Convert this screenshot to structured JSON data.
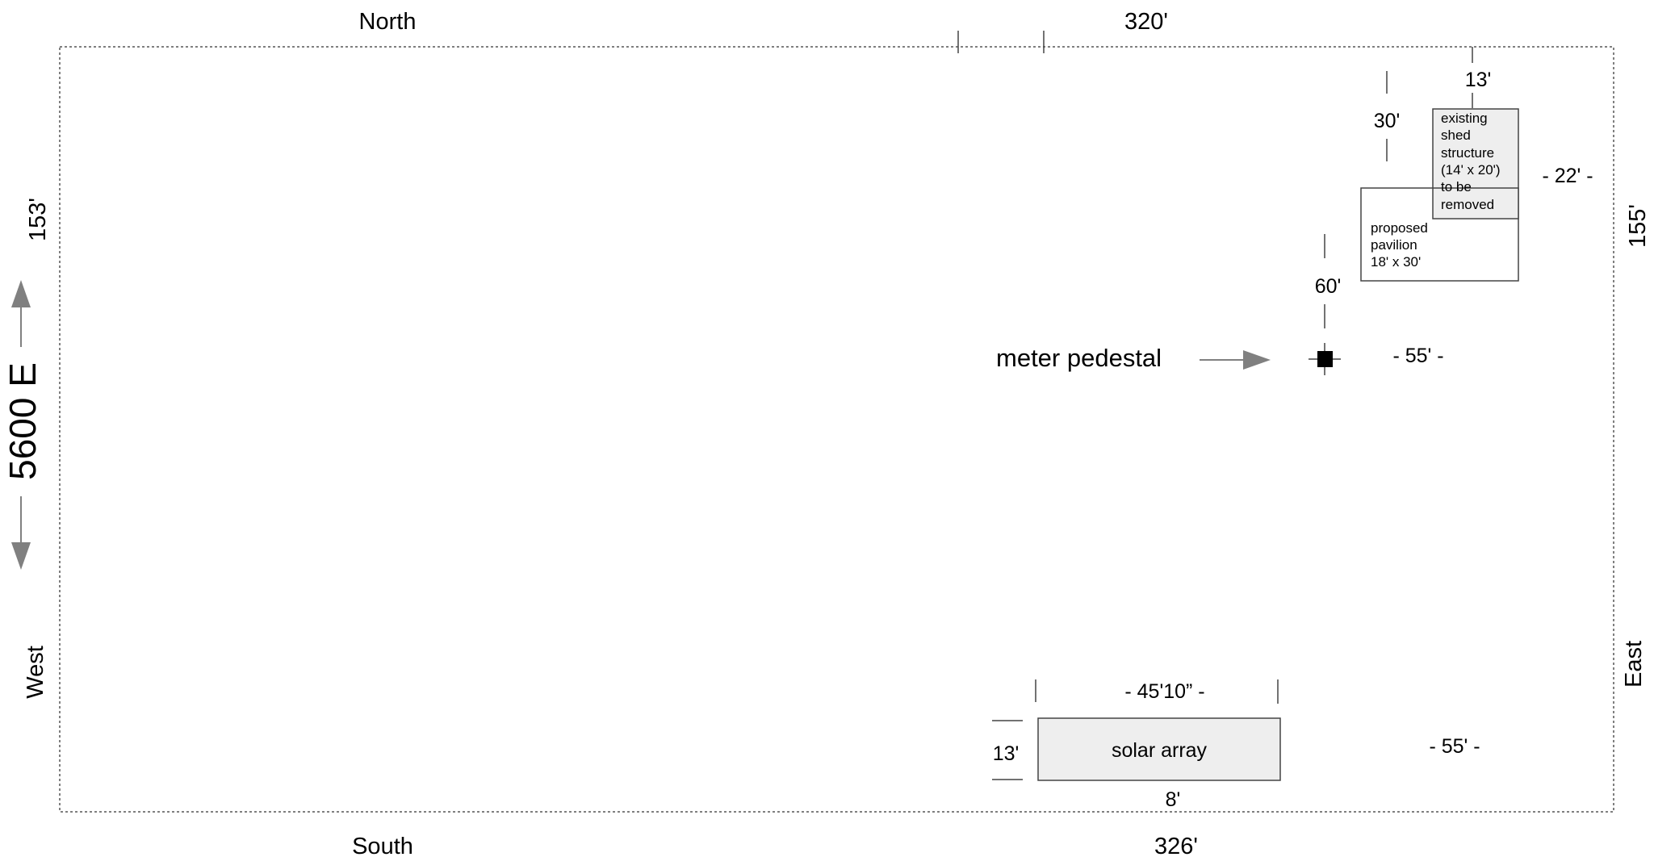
{
  "compass": {
    "north": "North",
    "south": "South",
    "east": "East",
    "west": "West"
  },
  "street": {
    "name": "5600 E"
  },
  "dimensions": {
    "north_length": "320'",
    "south_length": "326'",
    "west_length": "153'",
    "east_length": "155'",
    "shed_to_north": "13'",
    "pavilion_to_north": "30'",
    "shed_to_east": "- 22' -",
    "pavilion_to_meter": "60'",
    "meter_to_east": "- 55'  -",
    "solar_width": "- 45'10” -",
    "solar_depth": "13'",
    "solar_to_south": "8'",
    "solar_to_east": "- 55'  -"
  },
  "labels": {
    "meter_pedestal": "meter pedestal",
    "solar_array": "solar array",
    "shed": [
      "existing",
      "shed",
      "structure",
      "(14' x 20')",
      "to be",
      "removed"
    ],
    "pavilion": [
      "proposed",
      "pavilion",
      "18' x 30'"
    ]
  },
  "colors": {
    "line": "#444444",
    "arrow": "#808080",
    "shaded_fill": "#eeeeee",
    "marker": "#000000"
  }
}
